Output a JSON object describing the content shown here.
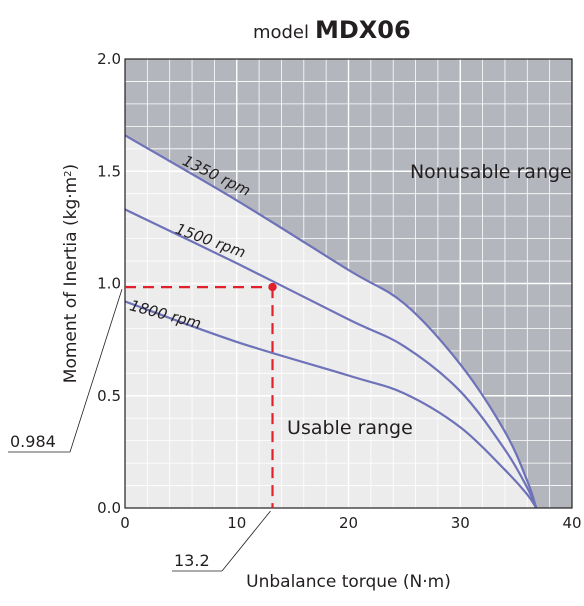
{
  "title": {
    "prefix": "model",
    "model": "MDX06"
  },
  "chart_data": {
    "type": "line",
    "xlabel": "Unbalance torque (N·m)",
    "ylabel_main": "Moment of Inertia  (kg·m",
    "ylabel_sup": "2",
    "ylabel_close": ")",
    "xlim": [
      0,
      40
    ],
    "ylim": [
      0,
      2.0
    ],
    "x_ticks": [
      {
        "value": 0,
        "label": "0"
      },
      {
        "value": 10,
        "label": "10"
      },
      {
        "value": 20,
        "label": "20"
      },
      {
        "value": 30,
        "label": "30"
      },
      {
        "value": 40,
        "label": "40"
      }
    ],
    "y_ticks": [
      {
        "value": 0,
        "label": "0.0"
      },
      {
        "value": 0.5,
        "label": "0.5"
      },
      {
        "value": 1.0,
        "label": "1.0"
      },
      {
        "value": 1.5,
        "label": "1.5"
      },
      {
        "value": 2.0,
        "label": "2.0"
      }
    ],
    "grid": true,
    "series": [
      {
        "name": "1350 rpm",
        "label_at": [
          8.0,
          1.46
        ],
        "label_angle": 26,
        "x": [
          0,
          10,
          20,
          25,
          30,
          34,
          36,
          36.8
        ],
        "y": [
          1.66,
          1.37,
          1.06,
          0.91,
          0.64,
          0.34,
          0.12,
          0.0
        ]
      },
      {
        "name": "1500 rpm",
        "label_at": [
          7.5,
          1.17
        ],
        "label_angle": 20,
        "x": [
          0,
          10,
          20,
          25,
          30,
          34,
          36,
          36.8
        ],
        "y": [
          1.33,
          1.09,
          0.84,
          0.72,
          0.52,
          0.26,
          0.09,
          0.0
        ]
      },
      {
        "name": "1800 rpm",
        "label_at": [
          3.5,
          0.84
        ],
        "label_angle": 15,
        "x": [
          0,
          10,
          20,
          25,
          30,
          34,
          36,
          36.8
        ],
        "y": [
          0.92,
          0.74,
          0.59,
          0.51,
          0.36,
          0.17,
          0.06,
          0.0
        ]
      }
    ],
    "regions": {
      "nonusable": {
        "label": "Nonusable range",
        "label_at": [
          25.5,
          1.47
        ]
      },
      "usable": {
        "label": "Usable range",
        "label_at": [
          14.5,
          0.33
        ]
      }
    },
    "annotation_point": {
      "x": 13.2,
      "y": 0.984,
      "x_label": "13.2",
      "y_label": "0.984"
    },
    "colors": {
      "nonusable_fill": "#b3b6bd",
      "usable_fill": "#ececec",
      "grid": "#ffffff",
      "curve": "#6e72b8",
      "marker": "#e0202a",
      "text": "#231f20"
    }
  }
}
